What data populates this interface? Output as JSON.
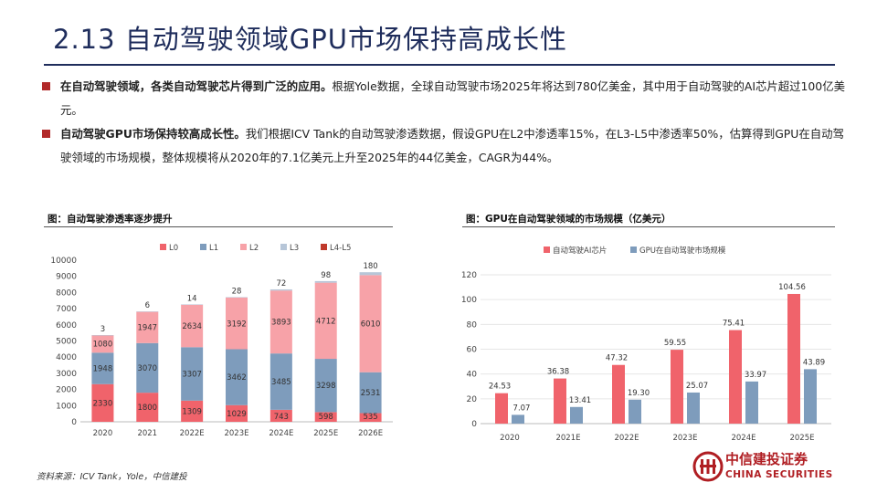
{
  "header": {
    "title": "2.13 自动驾驶领域GPU市场保持高成长性"
  },
  "bullets": [
    {
      "bold": "在自动驾驶领域，各类自动驾驶芯片得到广泛的应用。",
      "text": "根据Yole数据，全球自动驾驶市场2025年将达到780亿美金，其中用于自动驾驶的AI芯片超过100亿美元。"
    },
    {
      "bold": "自动驾驶GPU市场保持较高成长性。",
      "text": "我们根据ICV Tank的自动驾驶渗透数据，假设GPU在L2中渗透率15%，在L3-L5中渗透率50%，估算得到GPU在自动驾驶领域的市场规模，整体规模将从2020年的7.1亿美元上升至2025年的44亿美金，CAGR为44%。"
    }
  ],
  "chart_data": [
    {
      "type": "bar",
      "stacked": true,
      "title": "图：自动驾驶渗透率逐步提升",
      "categories": [
        "2020",
        "2021",
        "2022E",
        "2023E",
        "2024E",
        "2025E",
        "2026E"
      ],
      "series": [
        {
          "name": "L0",
          "color": "#f0636b",
          "values": [
            2330,
            1800,
            1309,
            1029,
            743,
            598,
            535
          ]
        },
        {
          "name": "L1",
          "color": "#7e9cbc",
          "values": [
            1948,
            3070,
            3307,
            3462,
            3485,
            3298,
            2531
          ]
        },
        {
          "name": "L2",
          "color": "#f7a2a8",
          "values": [
            1080,
            1947,
            2634,
            3192,
            3893,
            4712,
            6010
          ]
        },
        {
          "name": "L3",
          "color": "#b7c6d8",
          "values": [
            3,
            6,
            14,
            28,
            72,
            98,
            180
          ]
        },
        {
          "name": "L4-L5",
          "color": "#c0392b",
          "values": [
            0,
            0,
            0,
            0,
            0,
            0,
            0
          ]
        }
      ],
      "ylim": [
        0,
        10000
      ],
      "yticks": [
        0,
        1000,
        2000,
        3000,
        4000,
        5000,
        6000,
        7000,
        8000,
        9000,
        10000
      ],
      "legend": "top"
    },
    {
      "type": "bar",
      "title": "图：GPU在自动驾驶领域的市场规模（亿美元）",
      "categories": [
        "2020",
        "2021E",
        "2022E",
        "2023E",
        "2024E",
        "2025E"
      ],
      "series": [
        {
          "name": "自动驾驶AI芯片",
          "color": "#f0636b",
          "values": [
            24.53,
            36.38,
            47.32,
            59.55,
            75.41,
            104.56
          ]
        },
        {
          "name": "GPU在自动驾驶市场规模",
          "color": "#7e9cbc",
          "values": [
            7.07,
            13.41,
            19.3,
            25.07,
            33.97,
            43.89
          ]
        }
      ],
      "ylim": [
        0,
        120
      ],
      "yticks": [
        0,
        20,
        40,
        60,
        80,
        100,
        120
      ],
      "legend": "top"
    }
  ],
  "footer": {
    "source": "资料来源：ICV Tank，Yole，中信建投",
    "logo_cn": "中信建投证券",
    "logo_en": "CHINA SECURITIES",
    "logo_color": "#b01e23"
  }
}
